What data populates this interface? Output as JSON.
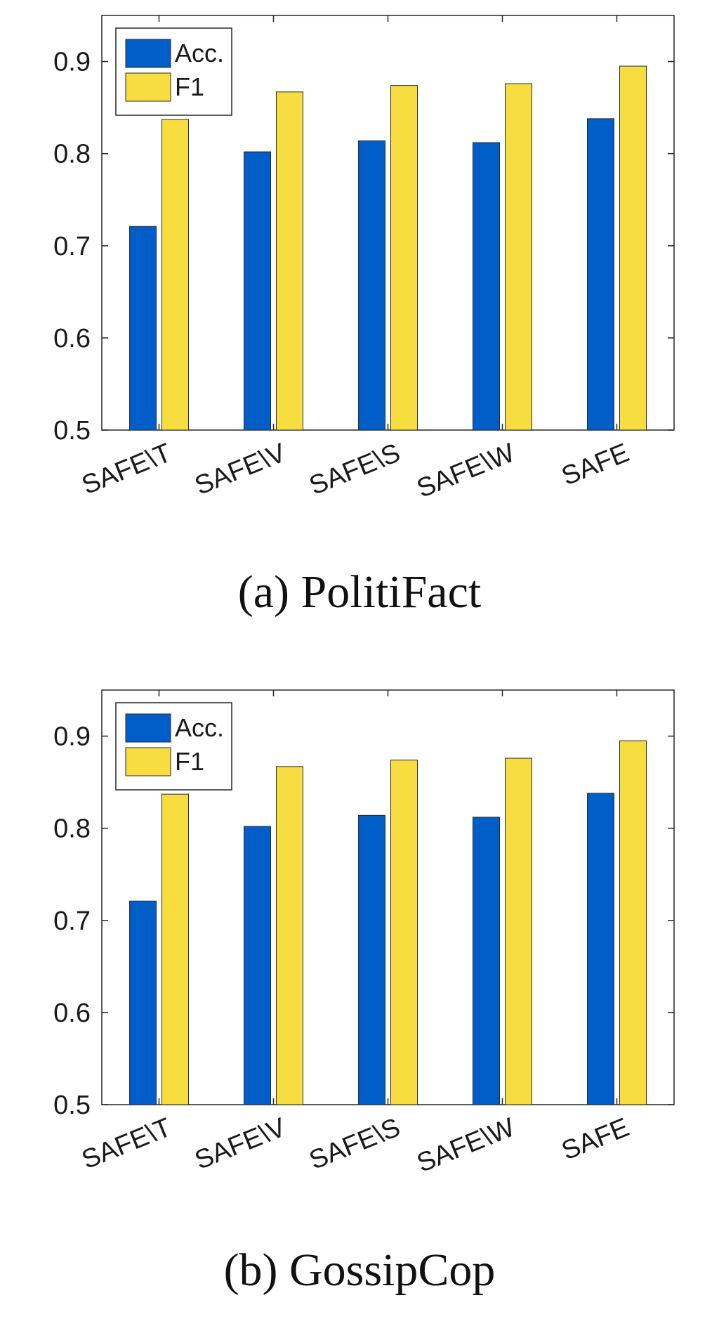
{
  "chart_data": [
    {
      "type": "bar",
      "caption": "(a) PolitiFact",
      "categories": [
        "SAFE\\T",
        "SAFE\\V",
        "SAFE\\S",
        "SAFE\\W",
        "SAFE"
      ],
      "series": [
        {
          "name": "Acc.",
          "values": [
            0.721,
            0.802,
            0.814,
            0.812,
            0.838
          ],
          "color": "#005ec8"
        },
        {
          "name": "F1",
          "values": [
            0.837,
            0.867,
            0.874,
            0.876,
            0.895
          ],
          "color": "#f7dd3f"
        }
      ],
      "ylim": [
        0.5,
        0.95
      ],
      "yticks": [
        "0.5",
        "0.6",
        "0.7",
        "0.8",
        "0.9"
      ],
      "legend": "top-left",
      "grid": false
    },
    {
      "type": "bar",
      "caption": "(b) GossipCop",
      "categories": [
        "SAFE\\T",
        "SAFE\\V",
        "SAFE\\S",
        "SAFE\\W",
        "SAFE"
      ],
      "series": [
        {
          "name": "Acc.",
          "values": [
            0.721,
            0.802,
            0.814,
            0.812,
            0.838
          ],
          "color": "#005ec8"
        },
        {
          "name": "F1",
          "values": [
            0.837,
            0.867,
            0.874,
            0.876,
            0.895
          ],
          "color": "#f7dd3f"
        }
      ],
      "ylim": [
        0.5,
        0.95
      ],
      "yticks": [
        "0.5",
        "0.6",
        "0.7",
        "0.8",
        "0.9"
      ],
      "legend": "top-left",
      "grid": false
    }
  ]
}
